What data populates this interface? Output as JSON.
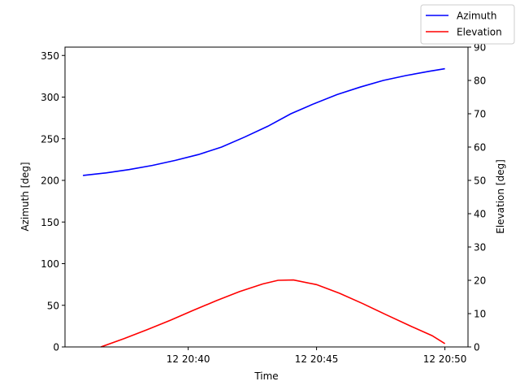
{
  "chart_data": {
    "type": "line",
    "xlabel": "Time",
    "ylabel_left": "Azimuth [deg]",
    "ylabel_right": "Elevation [deg]",
    "x_ticks": [
      {
        "label": "12 20:40",
        "minute": 40
      },
      {
        "label": "12 20:45",
        "minute": 45
      },
      {
        "label": "12 20:50",
        "minute": 50
      }
    ],
    "xlim_minutes": [
      35.2,
      50.9
    ],
    "ylim_left": [
      0,
      360
    ],
    "ylim_right": [
      0,
      90
    ],
    "y_ticks_left": [
      0,
      50,
      100,
      150,
      200,
      250,
      300,
      350
    ],
    "y_ticks_right": [
      0,
      10,
      20,
      30,
      40,
      50,
      60,
      70,
      80,
      90
    ],
    "legend": {
      "placement": "top-right",
      "entries": [
        {
          "name": "Azimuth",
          "color": "#0000ff"
        },
        {
          "name": "Elevation",
          "color": "#ff0000"
        }
      ]
    },
    "series": [
      {
        "name": "Azimuth",
        "axis": "left",
        "color": "#0000ff",
        "x_minutes": [
          35.9,
          36.8,
          37.7,
          38.6,
          39.5,
          40.4,
          41.3,
          42.2,
          43.1,
          44.0,
          44.9,
          45.8,
          46.7,
          47.6,
          48.5,
          49.4,
          50.0
        ],
        "values": [
          206,
          209,
          213,
          218,
          224,
          231,
          240,
          252,
          265,
          280,
          292,
          303,
          312,
          320,
          326,
          331,
          334
        ]
      },
      {
        "name": "Elevation",
        "axis": "right",
        "color": "#ff0000",
        "x_minutes": [
          36.6,
          37.5,
          38.4,
          39.3,
          40.2,
          41.1,
          42.0,
          42.9,
          43.5,
          44.1,
          45.0,
          45.9,
          46.8,
          47.7,
          48.6,
          49.5,
          50.0
        ],
        "values": [
          0,
          2.5,
          5.2,
          8.0,
          11.0,
          13.9,
          16.6,
          18.9,
          20.0,
          20.1,
          18.7,
          16.1,
          13.0,
          9.7,
          6.5,
          3.4,
          1.0
        ]
      }
    ]
  }
}
